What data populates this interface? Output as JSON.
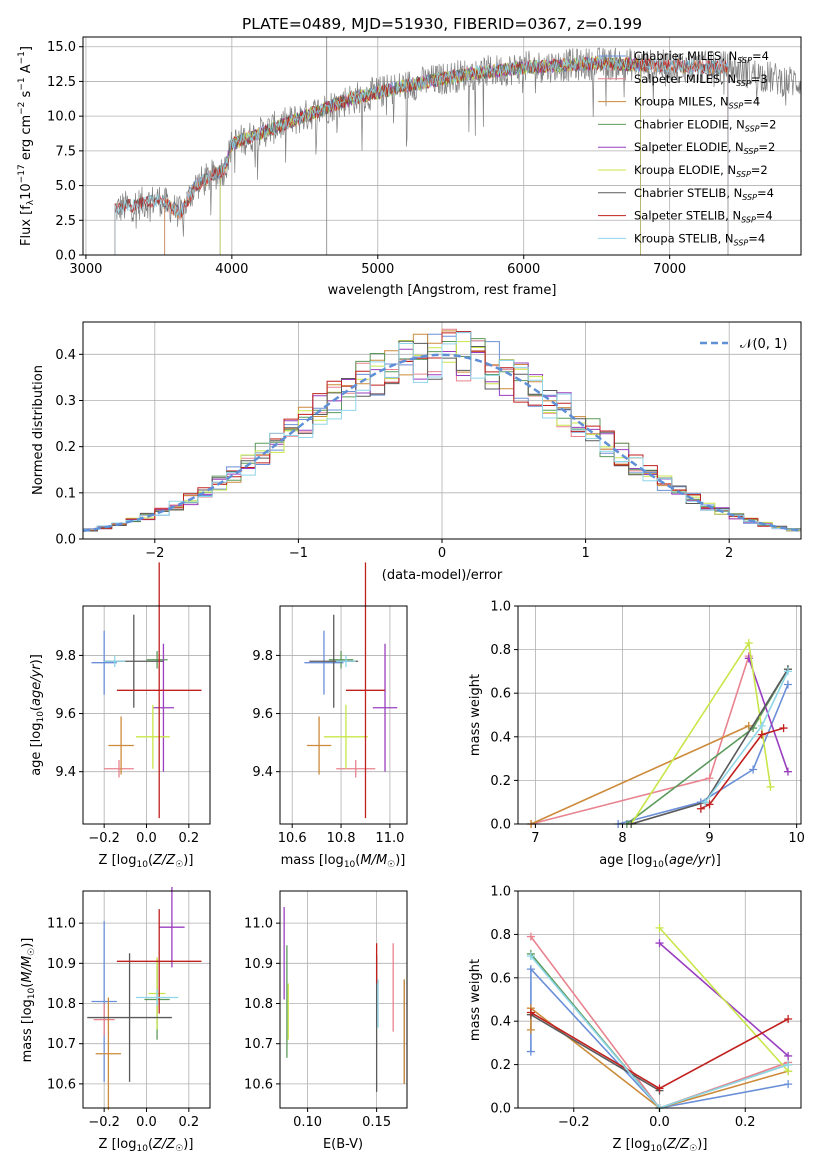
{
  "colors": {
    "chabrier_miles": "#6a8fd8",
    "salpeter_miles": "#e8838f",
    "kroupa_miles": "#cc8a3a",
    "chabrier_elodie": "#5c9a5c",
    "salpeter_elodie": "#9a3fbf",
    "kroupa_elodie": "#c8e64a",
    "chabrier_stelib": "#5a5a5a",
    "salpeter_stelib": "#c0201e",
    "kroupa_stelib": "#8fd6e8",
    "orange": "#e07820",
    "normal_curve": "#5f8fd6",
    "grid": "#b0b0b0",
    "spectrum_gray": "#808080"
  },
  "chart_data": [
    {
      "id": "spectrum",
      "type": "line",
      "title": "PLATE=0489, MJD=51930, FIBERID=0367, z=0.199",
      "xlabel": "wavelength [Angstrom, rest frame]",
      "ylabel": "Flux [fλ10⁻¹⁷ erg cm⁻² s⁻¹ A⁻¹]",
      "xlim": [
        2980,
        7900
      ],
      "ylim": [
        0,
        15.7
      ],
      "xticks": [
        "3000",
        "4000",
        "5000",
        "6000",
        "7000"
      ],
      "yticks": [
        "0.0",
        "2.5",
        "5.0",
        "7.5",
        "10.0",
        "12.5",
        "15.0"
      ],
      "legend_position": "top-right",
      "series": [
        {
          "name": "Chabrier MILES, N",
          "sub": "SSP",
          "tail": "=4",
          "start": 3540,
          "end": 7400
        },
        {
          "name": "Salpeter MILES, N",
          "sub": "SSP",
          "tail": "=3",
          "start": 3540,
          "end": 7400
        },
        {
          "name": "Kroupa MILES, N",
          "sub": "SSP",
          "tail": "=4",
          "start": 3540,
          "end": 7400
        },
        {
          "name": "Chabrier ELODIE, N",
          "sub": "SSP",
          "tail": "=2",
          "start": 3920,
          "end": 6800
        },
        {
          "name": "Salpeter ELODIE, N",
          "sub": "SSP",
          "tail": "=2",
          "start": 3920,
          "end": 6800
        },
        {
          "name": "Kroupa ELODIE, N",
          "sub": "SSP",
          "tail": "=2",
          "start": 3920,
          "end": 6800
        },
        {
          "name": "Chabrier STELIB, N",
          "sub": "SSP",
          "tail": "=4",
          "start": 3200,
          "end": 7400
        },
        {
          "name": "Salpeter STELIB, N",
          "sub": "SSP",
          "tail": "=4",
          "start": 3200,
          "end": 7400
        },
        {
          "name": "Kroupa STELIB, N",
          "sub": "SSP",
          "tail": "=4",
          "start": 3200,
          "end": 7400
        }
      ],
      "continuum": [
        [
          3200,
          3.3
        ],
        [
          3500,
          4.0
        ],
        [
          3650,
          3.0
        ],
        [
          3750,
          5.0
        ],
        [
          3950,
          6.2
        ],
        [
          4000,
          8.0
        ],
        [
          4300,
          9.2
        ],
        [
          4500,
          10.0
        ],
        [
          4800,
          11.2
        ],
        [
          5200,
          12.2
        ],
        [
          5600,
          13.0
        ],
        [
          6000,
          13.5
        ],
        [
          6500,
          13.8
        ],
        [
          7000,
          13.6
        ],
        [
          7400,
          13.5
        ],
        [
          7800,
          12.5
        ]
      ],
      "observed_start": 3200,
      "observed_end": 7900
    },
    {
      "id": "residual_hist",
      "type": "line",
      "xlabel": "(data-model)/error",
      "ylabel": "Normed distribution",
      "xlim": [
        -2.5,
        2.5
      ],
      "ylim": [
        0,
        0.47
      ],
      "xticks": [
        "−2",
        "−1",
        "0",
        "1",
        "2"
      ],
      "yticks": [
        "0.0",
        "0.1",
        "0.2",
        "0.3",
        "0.4"
      ],
      "legend": "𝒩(0, 1)",
      "legend_position": "top-right",
      "bin_width": 0.1
    },
    {
      "id": "age_vs_Z",
      "type": "scatter",
      "xlabel": "Z [log10(Z/Z☉)]",
      "ylabel": "age  [log10(age/yr)]",
      "xlim": [
        -0.3,
        0.3
      ],
      "ylim": [
        9.22,
        9.97
      ],
      "xticks": [
        "−0.2",
        "0.0",
        "0.2"
      ],
      "yticks": [
        "9.4",
        "9.6",
        "9.8"
      ],
      "points": [
        {
          "series": 0,
          "x": -0.2,
          "xerr": 0.06,
          "y": 9.775,
          "yerr": 0.11
        },
        {
          "series": 1,
          "x": -0.13,
          "xerr": 0.07,
          "y": 9.41,
          "yerr": 0.03
        },
        {
          "series": 2,
          "x": -0.12,
          "xerr": 0.06,
          "y": 9.49,
          "yerr": 0.1
        },
        {
          "series": 3,
          "x": 0.05,
          "xerr": 0.05,
          "y": 9.785,
          "yerr": 0.03
        },
        {
          "series": 4,
          "x": 0.08,
          "xerr": 0.05,
          "y": 9.62,
          "yerr": 0.22
        },
        {
          "series": 5,
          "x": 0.03,
          "xerr": 0.08,
          "y": 9.52,
          "yerr": 0.11
        },
        {
          "series": 6,
          "x": -0.06,
          "xerr": 0.14,
          "y": 9.78,
          "yerr": 0.16
        },
        {
          "series": 7,
          "x": 0.06,
          "xerr": 0.2,
          "y": 9.68,
          "yerr": 0.44
        },
        {
          "series": 8,
          "x": -0.15,
          "xerr": 0.05,
          "y": 9.78,
          "yerr": 0.02
        }
      ]
    },
    {
      "id": "age_vs_mass",
      "type": "scatter",
      "xlabel": "mass [log10(M/M☉)]",
      "ylabel": "",
      "xlim": [
        10.55,
        11.07
      ],
      "ylim": [
        9.22,
        9.97
      ],
      "xticks": [
        "10.6",
        "10.8",
        "11.0"
      ],
      "yticks": [
        "9.4",
        "9.6",
        "9.8"
      ],
      "points": [
        {
          "series": 0,
          "x": 10.73,
          "xerr": 0.08,
          "y": 9.775,
          "yerr": 0.11
        },
        {
          "series": 1,
          "x": 10.86,
          "xerr": 0.08,
          "y": 9.41,
          "yerr": 0.03
        },
        {
          "series": 2,
          "x": 10.71,
          "xerr": 0.05,
          "y": 9.49,
          "yerr": 0.1
        },
        {
          "series": 3,
          "x": 10.8,
          "xerr": 0.05,
          "y": 9.785,
          "yerr": 0.03
        },
        {
          "series": 4,
          "x": 10.98,
          "xerr": 0.05,
          "y": 9.62,
          "yerr": 0.22
        },
        {
          "series": 5,
          "x": 10.82,
          "xerr": 0.09,
          "y": 9.52,
          "yerr": 0.11
        },
        {
          "series": 6,
          "x": 10.77,
          "xerr": 0.1,
          "y": 9.78,
          "yerr": 0.16
        },
        {
          "series": 7,
          "x": 10.9,
          "xerr": 0.08,
          "y": 9.68,
          "yerr": 0.44
        },
        {
          "series": 8,
          "x": 10.82,
          "xerr": 0.04,
          "y": 9.78,
          "yerr": 0.02
        }
      ]
    },
    {
      "id": "massweight_vs_age",
      "type": "line",
      "xlabel": "age  [log10(age/yr)]",
      "ylabel": "mass weight",
      "xlim": [
        6.8,
        10.05
      ],
      "ylim": [
        0,
        1.0
      ],
      "xticks": [
        "7",
        "8",
        "9",
        "10"
      ],
      "yticks": [
        "0.0",
        "0.2",
        "0.4",
        "0.6",
        "0.8",
        "1.0"
      ],
      "series": [
        {
          "series": 0,
          "x": [
            7.95,
            8.9,
            9.5,
            9.9
          ],
          "y": [
            0.0,
            0.1,
            0.25,
            0.64
          ]
        },
        {
          "series": 1,
          "x": [
            6.95,
            9.0,
            9.45
          ],
          "y": [
            0.0,
            0.21,
            0.77
          ]
        },
        {
          "series": 2,
          "x": [
            6.95,
            9.45
          ],
          "y": [
            0.0,
            0.45
          ]
        },
        {
          "series": 3,
          "x": [
            8.05,
            9.5,
            9.9
          ],
          "y": [
            0.0,
            0.44,
            0.71
          ]
        },
        {
          "series": 4,
          "x": [
            9.45,
            9.9
          ],
          "y": [
            0.76,
            0.24
          ]
        },
        {
          "series": 5,
          "x": [
            8.1,
            9.45,
            9.7
          ],
          "y": [
            0.0,
            0.83,
            0.17
          ]
        },
        {
          "series": 6,
          "x": [
            8.1,
            8.95,
            9.9
          ],
          "y": [
            0.0,
            0.1,
            0.71
          ]
        },
        {
          "series": 7,
          "x": [
            8.9,
            9.0,
            9.6,
            9.85
          ],
          "y": [
            0.07,
            0.09,
            0.41,
            0.44
          ]
        },
        {
          "series": 8,
          "x": [
            8.95,
            9.6,
            9.9
          ],
          "y": [
            0.1,
            0.45,
            0.7
          ]
        }
      ]
    },
    {
      "id": "mass_vs_Z",
      "type": "scatter",
      "xlabel": "Z [log10(Z/Z☉)]",
      "ylabel": "mass [log10(M/M☉)]",
      "xlim": [
        -0.3,
        0.3
      ],
      "ylim": [
        10.54,
        11.08
      ],
      "xticks": [
        "−0.2",
        "0.0",
        "0.2"
      ],
      "yticks": [
        "10.6",
        "10.7",
        "10.8",
        "10.9",
        "11.0"
      ],
      "points": [
        {
          "series": 0,
          "x": -0.2,
          "xerr": 0.06,
          "y": 10.805,
          "yerr": 0.2
        },
        {
          "series": 1,
          "x": -0.2,
          "xerr": 0.05,
          "y": 10.76,
          "yerr": 0.04
        },
        {
          "series": 2,
          "x": -0.18,
          "xerr": 0.06,
          "y": 10.675,
          "yerr": 0.14
        },
        {
          "series": 3,
          "x": 0.05,
          "xerr": 0.06,
          "y": 10.81,
          "yerr": 0.1
        },
        {
          "series": 4,
          "x": 0.12,
          "xerr": 0.06,
          "y": 10.99,
          "yerr": 0.1
        },
        {
          "series": 5,
          "x": 0.05,
          "xerr": 0.04,
          "y": 10.825,
          "yerr": 0.09
        },
        {
          "series": 6,
          "x": -0.08,
          "xerr": 0.2,
          "y": 10.765,
          "yerr": 0.16
        },
        {
          "series": 7,
          "x": 0.06,
          "xerr": 0.2,
          "y": 10.905,
          "yerr": 0.13
        },
        {
          "series": 8,
          "x": 0.05,
          "xerr": 0.1,
          "y": 10.815,
          "yerr": 0.02
        }
      ]
    },
    {
      "id": "mass_vs_ebv",
      "type": "scatter",
      "xlabel": "E(B-V)",
      "ylabel": "",
      "xlim": [
        0.08,
        0.172
      ],
      "ylim": [
        10.54,
        11.08
      ],
      "xticks": [
        "0.10",
        "0.15"
      ],
      "yticks": [
        "10.6",
        "10.7",
        "10.8",
        "10.9",
        "11.0"
      ],
      "points": [
        {
          "series": 0,
          "x": 0.17,
          "xerr": 0.0,
          "y": 10.73,
          "yerr": 0.13
        },
        {
          "series": 1,
          "x": 0.162,
          "xerr": 0.0,
          "y": 10.84,
          "yerr": 0.11
        },
        {
          "series": 2,
          "x": 0.17,
          "xerr": 0.0,
          "y": 10.73,
          "yerr": 0.13
        },
        {
          "series": 3,
          "x": 0.085,
          "xerr": 0.0,
          "y": 10.805,
          "yerr": 0.14
        },
        {
          "series": 4,
          "x": 0.083,
          "xerr": 0.0,
          "y": 10.925,
          "yerr": 0.115
        },
        {
          "series": 5,
          "x": 0.086,
          "xerr": 0.0,
          "y": 10.78,
          "yerr": 0.07
        },
        {
          "series": 6,
          "x": 0.15,
          "xerr": 0.0,
          "y": 10.75,
          "yerr": 0.17
        },
        {
          "series": 7,
          "x": 0.15,
          "xerr": 0.0,
          "y": 10.9,
          "yerr": 0.05
        },
        {
          "series": 8,
          "x": 0.151,
          "xerr": 0.0,
          "y": 10.8,
          "yerr": 0.06
        }
      ]
    },
    {
      "id": "massweight_vs_Z",
      "type": "line",
      "xlabel": "Z [log10(Z/Z☉)]",
      "ylabel": "mass weight",
      "xlim": [
        -0.33,
        0.33
      ],
      "ylim": [
        0,
        1.0
      ],
      "xticks": [
        "−0.2",
        "0.0",
        "0.2"
      ],
      "yticks": [
        "0.0",
        "0.2",
        "0.4",
        "0.6",
        "0.8",
        "1.0"
      ],
      "series": [
        {
          "series": 0,
          "x": [
            -0.3,
            -0.3,
            0.0,
            0.3
          ],
          "y": [
            0.26,
            0.64,
            0.0,
            0.11
          ]
        },
        {
          "series": 1,
          "x": [
            -0.3,
            0.0,
            0.3
          ],
          "y": [
            0.79,
            0.0,
            0.21
          ]
        },
        {
          "series": 2,
          "x": [
            -0.3,
            -0.3,
            0.0,
            0.3
          ],
          "y": [
            0.36,
            0.46,
            0.0,
            0.17
          ]
        },
        {
          "series": 3,
          "x": [
            -0.3,
            0.0,
            0.3
          ],
          "y": [
            0.71,
            0.0,
            0.2
          ]
        },
        {
          "series": 4,
          "x": [
            0.0,
            0.3
          ],
          "y": [
            0.76,
            0.24
          ]
        },
        {
          "series": 5,
          "x": [
            0.0,
            0.3
          ],
          "y": [
            0.83,
            0.17
          ]
        },
        {
          "series": 6,
          "x": [
            -0.3,
            0.0
          ],
          "y": [
            0.43,
            0.08
          ]
        },
        {
          "series": 7,
          "x": [
            -0.3,
            0.0,
            0.3
          ],
          "y": [
            0.44,
            0.09,
            0.41
          ]
        },
        {
          "series": 8,
          "x": [
            -0.3,
            0.0,
            0.3
          ],
          "y": [
            0.7,
            0.0,
            0.2
          ]
        }
      ]
    }
  ]
}
